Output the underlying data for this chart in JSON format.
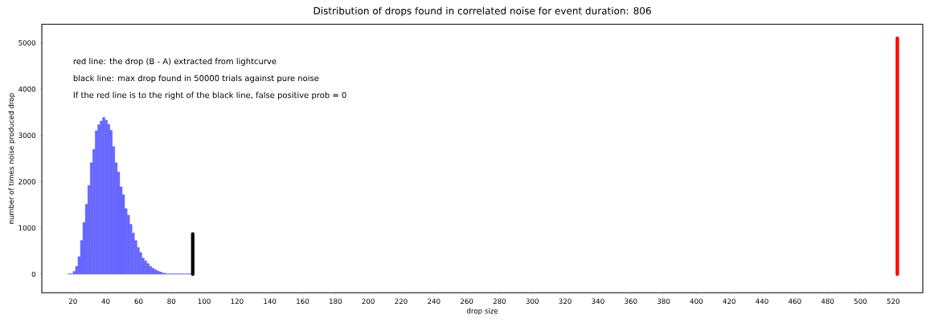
{
  "chart_data": {
    "type": "histogram",
    "title": "Distribution of drops found in correlated noise for event duration: 806",
    "xlabel": "drop size",
    "ylabel": "number of times noise produced drop",
    "bins": [
      17,
      18.5,
      20,
      21.5,
      23,
      24.5,
      26,
      27.5,
      29,
      30.5,
      32,
      33.5,
      35,
      36.5,
      38,
      39.5,
      41,
      42.5,
      44,
      45.5,
      47,
      48.5,
      50,
      51.5,
      53,
      54.5,
      56,
      57.5,
      59,
      60.5,
      62,
      63.5,
      65,
      66.5,
      68,
      69.5,
      71,
      72.5,
      74,
      75.5,
      77,
      78.5,
      80,
      81.5,
      83,
      84.5,
      86,
      87.5,
      89,
      90.5,
      92
    ],
    "values": [
      10,
      10,
      60,
      170,
      380,
      730,
      1120,
      1510,
      1920,
      2410,
      2700,
      3100,
      3230,
      3310,
      3390,
      3330,
      3240,
      3110,
      2760,
      2410,
      2210,
      1890,
      1720,
      1420,
      1280,
      1080,
      890,
      730,
      580,
      470,
      350,
      290,
      230,
      170,
      130,
      100,
      70,
      50,
      30,
      20,
      10,
      10,
      10,
      10,
      10,
      10,
      10,
      10,
      10,
      10
    ],
    "color": "#6666ff",
    "series": [
      {
        "type": "bar",
        "color": "#000000",
        "x": [
          93
        ],
        "values": [
          870
        ]
      },
      {
        "type": "bar",
        "color": "#ff0000",
        "x": [
          522.5
        ],
        "values": [
          5100
        ]
      }
    ],
    "xlim": [
      1,
      538
    ],
    "ylim": [
      -400,
      5400
    ],
    "xticks": [
      20,
      40,
      60,
      80,
      100,
      120,
      140,
      160,
      180,
      200,
      220,
      240,
      260,
      280,
      300,
      320,
      340,
      360,
      380,
      400,
      420,
      440,
      460,
      480,
      500,
      520
    ],
    "yticks": [
      0,
      1000,
      2000,
      3000,
      4000,
      5000
    ],
    "annotations": [
      "red line: the drop (B - A) extracted from lightcurve",
      "black line: max drop found in 50000 trials against pure noise",
      "If the red line is to the right of the black line, false positive prob = 0"
    ]
  }
}
